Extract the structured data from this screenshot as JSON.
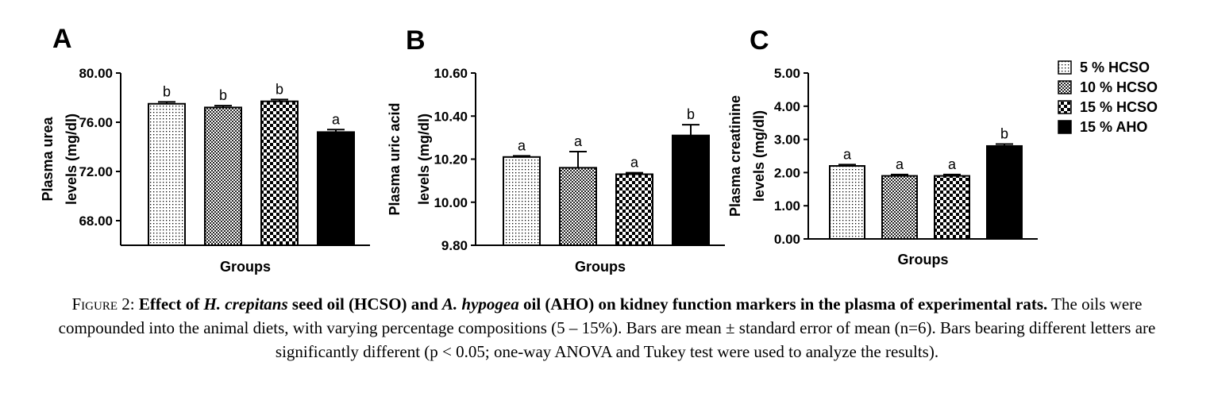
{
  "figure": {
    "legend": [
      {
        "label": "5 % HCSO",
        "pattern": "dots"
      },
      {
        "label": "10 % HCSO",
        "pattern": "fine-check"
      },
      {
        "label": "15 % HCSO",
        "pattern": "check"
      },
      {
        "label": "15 % AHO",
        "pattern": "solid"
      }
    ],
    "caption": {
      "fig_label": "Figure 2:",
      "title_part1": "Effect of ",
      "title_italic1": "H. crepitans",
      "title_part2": " seed oil (HCSO) and ",
      "title_italic2": "A. hypogea",
      "title_part3": " oil (AHO) on kidney function markers in the plasma of experimental rats.",
      "body": " The oils were compounded into the animal diets, with varying percentage compositions (5 – 15%). Bars are mean ± standard error of mean (n=6). Bars bearing different letters are significantly different (p < 0.05; one-way ANOVA and Tukey test were used to analyze the results)."
    }
  },
  "chart_data": [
    {
      "panel": "A",
      "type": "bar",
      "categories": [
        "5 % HCSO",
        "10 % HCSO",
        "15 % HCSO",
        "15 % AHO"
      ],
      "values": [
        77.5,
        77.2,
        77.7,
        75.2
      ],
      "errors": [
        0.15,
        0.15,
        0.15,
        0.2
      ],
      "significance": [
        "b",
        "b",
        "b",
        "a"
      ],
      "xlabel": "Groups",
      "ylabel": [
        "Plasma urea",
        "levels (mg/dl)"
      ],
      "ylim": [
        66,
        80
      ],
      "ticks": [
        68,
        72,
        76,
        80
      ],
      "tick_labels": [
        "68.00",
        "72.00",
        "76.00",
        "80.00"
      ]
    },
    {
      "panel": "B",
      "type": "bar",
      "categories": [
        "5 % HCSO",
        "10 % HCSO",
        "15 % HCSO",
        "15 % AHO"
      ],
      "values": [
        10.21,
        10.16,
        10.13,
        10.31
      ],
      "errors": [
        0.005,
        0.075,
        0.007,
        0.05
      ],
      "significance": [
        "a",
        "a",
        "a",
        "b"
      ],
      "xlabel": "Groups",
      "ylabel": [
        "Plasma uric acid",
        "levels (mg/dl)"
      ],
      "ylim": [
        9.8,
        10.6
      ],
      "ticks": [
        9.8,
        10.0,
        10.2,
        10.4,
        10.6
      ],
      "tick_labels": [
        "9.80",
        "10.00",
        "10.20",
        "10.40",
        "10.60"
      ]
    },
    {
      "panel": "C",
      "type": "bar",
      "categories": [
        "5 % HCSO",
        "10 % HCSO",
        "15 % HCSO",
        "15 % AHO"
      ],
      "values": [
        2.2,
        1.9,
        1.9,
        2.8
      ],
      "errors": [
        0.04,
        0.04,
        0.04,
        0.06
      ],
      "significance": [
        "a",
        "a",
        "a",
        "b"
      ],
      "xlabel": "Groups",
      "ylabel": [
        "Plasma creatinine",
        "levels (mg/dl)"
      ],
      "ylim": [
        0,
        5
      ],
      "ticks": [
        0,
        1,
        2,
        3,
        4,
        5
      ],
      "tick_labels": [
        "0.00",
        "1.00",
        "2.00",
        "3.00",
        "4.00",
        "5.00"
      ]
    }
  ]
}
